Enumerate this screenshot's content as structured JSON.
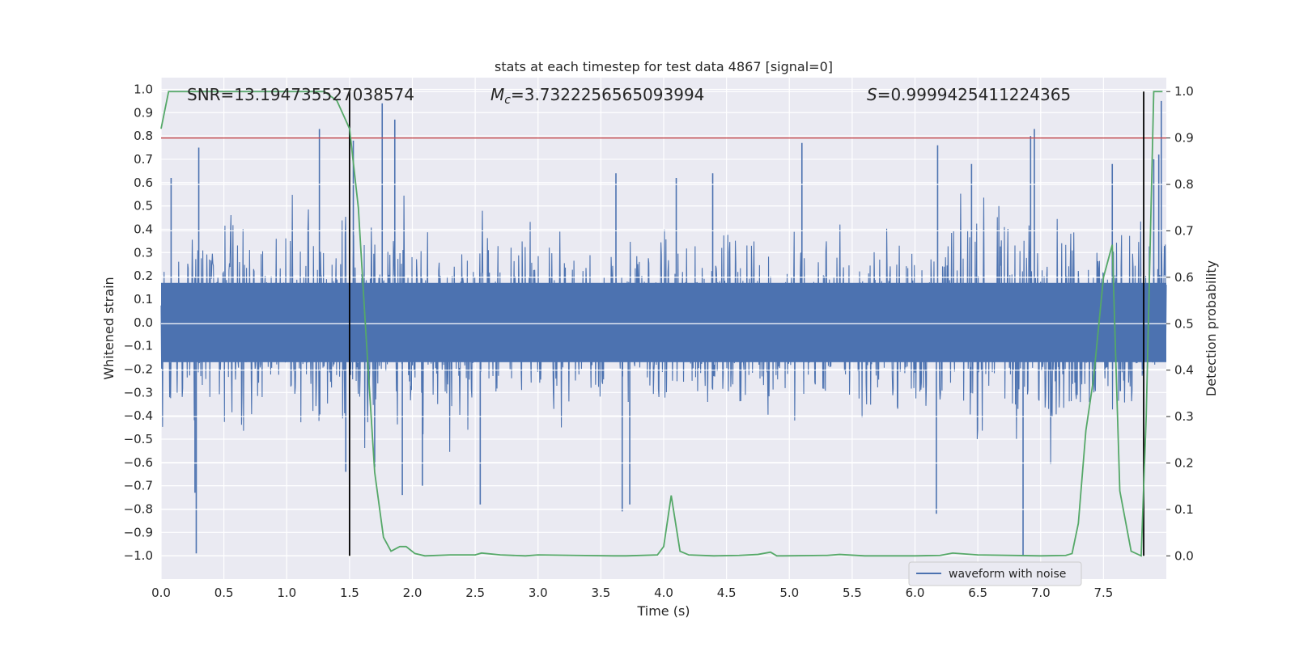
{
  "chart_data": {
    "type": "line",
    "title": "stats at each timestep for test data 4867 [signal=0]",
    "xlabel": "Time (s)",
    "ylabel_left": "Whitened strain",
    "ylabel_right": "Detection probability",
    "xlim": [
      0.0,
      8.0
    ],
    "ylim_left": [
      -1.1,
      1.05
    ],
    "ylim_right": [
      -0.05,
      1.03
    ],
    "x_ticks": [
      0.0,
      0.5,
      1.0,
      1.5,
      2.0,
      2.5,
      3.0,
      3.5,
      4.0,
      4.5,
      5.0,
      5.5,
      6.0,
      6.5,
      7.0,
      7.5
    ],
    "x_tick_labels": [
      "0.0",
      "0.5",
      "1.0",
      "1.5",
      "2.0",
      "2.5",
      "3.0",
      "3.5",
      "4.0",
      "4.5",
      "5.0",
      "5.5",
      "6.0",
      "6.5",
      "7.0",
      "7.5"
    ],
    "y_left_ticks": [
      1.0,
      0.9,
      0.8,
      0.7,
      0.6,
      0.5,
      0.4,
      0.3,
      0.2,
      0.1,
      0.0,
      -0.1,
      -0.2,
      -0.3,
      -0.4,
      -0.5,
      -0.6,
      -0.7,
      -0.8,
      -0.9,
      -1.0
    ],
    "y_left_tick_labels": [
      "1.0",
      "0.9",
      "0.8",
      "0.7",
      "0.6",
      "0.5",
      "0.4",
      "0.3",
      "0.2",
      "0.1",
      "0.0",
      "−0.1",
      "−0.2",
      "−0.3",
      "−0.4",
      "−0.5",
      "−0.6",
      "−0.7",
      "−0.8",
      "−0.9",
      "−1.0"
    ],
    "y_right_ticks": [
      1.0,
      0.9,
      0.8,
      0.7,
      0.6,
      0.5,
      0.4,
      0.3,
      0.2,
      0.1,
      0.0
    ],
    "y_right_tick_labels": [
      "1.0",
      "0.9",
      "0.8",
      "0.7",
      "0.6",
      "0.5",
      "0.4",
      "0.3",
      "0.2",
      "0.1",
      "0.0"
    ],
    "annotations": {
      "snr": "SNR=13.194735527038574",
      "mc_symbol": "M",
      "mc_sub": "c",
      "mc_value": "=3.7322256565093994",
      "s_symbol": "S",
      "s_value": "=0.9999425411224365"
    },
    "threshold_line": {
      "axis": "right",
      "value": 0.9,
      "color": "#c44e52"
    },
    "vertical_lines": [
      1.5,
      7.82
    ],
    "series": [
      {
        "name": "waveform with noise",
        "axis": "left",
        "color": "#4c72b0",
        "style": "noise",
        "envelope": {
          "x": [
            0.0,
            1.0,
            1.5,
            2.0,
            3.0,
            3.6,
            4.0,
            5.0,
            5.5,
            6.0,
            7.0,
            7.5,
            8.0
          ],
          "amp": [
            0.42,
            0.48,
            0.5,
            0.48,
            0.42,
            0.36,
            0.4,
            0.42,
            0.4,
            0.45,
            0.5,
            0.46,
            0.5
          ]
        },
        "spikes": [
          [
            0.28,
            -0.99
          ],
          [
            0.08,
            0.62
          ],
          [
            0.3,
            0.75
          ],
          [
            0.27,
            -0.73
          ],
          [
            1.26,
            0.83
          ],
          [
            1.53,
            0.78
          ],
          [
            1.47,
            -0.64
          ],
          [
            1.76,
            0.94
          ],
          [
            1.86,
            0.87
          ],
          [
            1.7,
            -0.62
          ],
          [
            1.92,
            -0.74
          ],
          [
            2.54,
            -0.78
          ],
          [
            2.08,
            -0.7
          ],
          [
            3.67,
            -0.81
          ],
          [
            3.73,
            -0.78
          ],
          [
            3.62,
            0.64
          ],
          [
            4.1,
            0.62
          ],
          [
            4.39,
            0.64
          ],
          [
            5.1,
            0.77
          ],
          [
            6.17,
            -0.82
          ],
          [
            6.18,
            0.76
          ],
          [
            6.45,
            0.68
          ],
          [
            6.92,
            0.8
          ],
          [
            6.95,
            0.83
          ],
          [
            6.86,
            -1.0
          ],
          [
            7.57,
            0.68
          ],
          [
            7.94,
            0.72
          ],
          [
            7.96,
            0.95
          ],
          [
            7.9,
            0.7
          ]
        ]
      },
      {
        "name": "Detection probability",
        "axis": "right",
        "color": "#55a868",
        "x": [
          0.0,
          0.06,
          0.12,
          1.3,
          1.4,
          1.45,
          1.5,
          1.57,
          1.63,
          1.7,
          1.77,
          1.83,
          1.9,
          1.95,
          2.02,
          2.1,
          2.3,
          2.5,
          2.55,
          2.7,
          2.9,
          3.0,
          3.3,
          3.6,
          3.7,
          3.95,
          4.0,
          4.06,
          4.13,
          4.2,
          4.4,
          4.6,
          4.75,
          4.85,
          4.9,
          4.95,
          5.3,
          5.4,
          5.6,
          6.0,
          6.2,
          6.3,
          6.5,
          7.0,
          7.2,
          7.25,
          7.3,
          7.36,
          7.42,
          7.5,
          7.57,
          7.63,
          7.72,
          7.8,
          7.84,
          7.9,
          7.97
        ],
        "y": [
          0.92,
          1.0,
          1.0,
          1.0,
          0.98,
          0.95,
          0.92,
          0.75,
          0.48,
          0.18,
          0.04,
          0.01,
          0.02,
          0.02,
          0.005,
          0.0,
          0.002,
          0.002,
          0.006,
          0.002,
          0.0,
          0.002,
          0.001,
          0.0,
          0.0,
          0.002,
          0.02,
          0.13,
          0.01,
          0.002,
          0.0,
          0.001,
          0.003,
          0.008,
          0.0,
          0.0,
          0.001,
          0.003,
          0.0,
          0.0,
          0.001,
          0.006,
          0.002,
          0.0,
          0.001,
          0.005,
          0.07,
          0.27,
          0.38,
          0.6,
          0.67,
          0.14,
          0.01,
          0.0,
          0.3,
          1.0,
          1.0
        ]
      }
    ],
    "legend": {
      "position": "lower-right",
      "entries": [
        "waveform with noise"
      ]
    }
  }
}
